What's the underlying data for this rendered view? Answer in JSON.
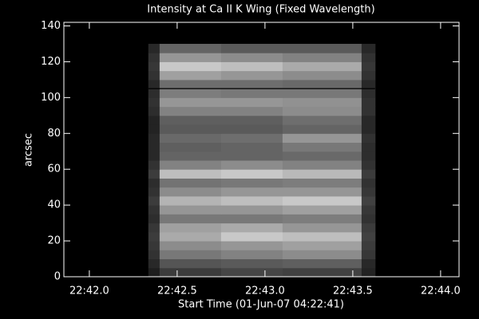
{
  "chart_data": {
    "type": "heatmap",
    "title": "Intensity at Ca II K Wing (Fixed Wavelength)",
    "x_label": "Start Time (01-Jun-07 04:22:41)",
    "y_label": "arcsec",
    "xlim": [
      41.855,
      44.105
    ],
    "xticks": [
      {
        "value": 42.0,
        "label": "22:42.0"
      },
      {
        "value": 42.5,
        "label": "22:42.5"
      },
      {
        "value": 43.0,
        "label": "22:43.0"
      },
      {
        "value": 43.5,
        "label": "22:43.5"
      },
      {
        "value": 44.0,
        "label": "22:44.0"
      }
    ],
    "ylim": [
      0,
      142
    ],
    "yticks": [
      0,
      20,
      40,
      60,
      80,
      100,
      120,
      140
    ],
    "x_edges": [
      42.336,
      42.4,
      42.75,
      43.1,
      43.55,
      43.627
    ],
    "y_edges": [
      0,
      5,
      10,
      15,
      20,
      25,
      30,
      35,
      40,
      45,
      50,
      55,
      60,
      65,
      70,
      75,
      80,
      85,
      90,
      95,
      100,
      105,
      110,
      115,
      120,
      125,
      130
    ],
    "z": [
      [
        30,
        60,
        70,
        65,
        35
      ],
      [
        40,
        85,
        90,
        95,
        40
      ],
      [
        50,
        120,
        130,
        140,
        55
      ],
      [
        55,
        140,
        150,
        160,
        60
      ],
      [
        60,
        170,
        200,
        190,
        65
      ],
      [
        55,
        160,
        170,
        150,
        60
      ],
      [
        45,
        120,
        120,
        125,
        50
      ],
      [
        50,
        150,
        150,
        160,
        55
      ],
      [
        60,
        180,
        190,
        200,
        65
      ],
      [
        50,
        140,
        150,
        150,
        55
      ],
      [
        45,
        115,
        120,
        125,
        50
      ],
      [
        60,
        190,
        200,
        185,
        60
      ],
      [
        50,
        130,
        140,
        130,
        50
      ],
      [
        40,
        100,
        100,
        105,
        45
      ],
      [
        40,
        95,
        100,
        120,
        45
      ],
      [
        40,
        105,
        110,
        150,
        50
      ],
      [
        35,
        90,
        90,
        100,
        40
      ],
      [
        35,
        95,
        95,
        110,
        40
      ],
      [
        45,
        130,
        130,
        140,
        50
      ],
      [
        50,
        150,
        150,
        145,
        50
      ],
      [
        45,
        125,
        120,
        120,
        45
      ],
      [
        40,
        110,
        110,
        105,
        40
      ],
      [
        50,
        160,
        150,
        140,
        50
      ],
      [
        55,
        200,
        190,
        170,
        55
      ],
      [
        50,
        150,
        140,
        130,
        50
      ],
      [
        40,
        100,
        90,
        90,
        40
      ]
    ],
    "hline": 105,
    "hline_color": "#000000",
    "frame_color": "#ffffff"
  }
}
